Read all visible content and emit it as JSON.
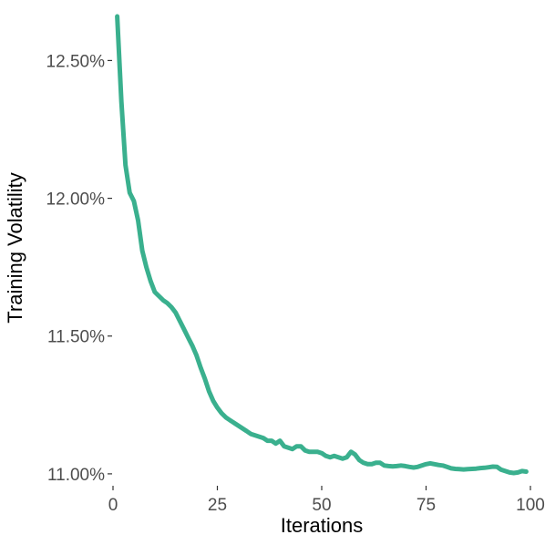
{
  "chart_data": {
    "type": "line",
    "title": "",
    "xlabel": "Iterations",
    "ylabel": "Training Volatility",
    "xlim": [
      0,
      100
    ],
    "ylim": [
      10.96,
      12.68
    ],
    "x_ticks": [
      0,
      25,
      50,
      75,
      100
    ],
    "x_tick_labels": [
      "0",
      "25",
      "50",
      "75",
      "100"
    ],
    "y_ticks": [
      11.0,
      11.5,
      12.0,
      12.5
    ],
    "y_tick_labels": [
      "11.00%",
      "11.50%",
      "12.00%",
      "12.50%"
    ],
    "grid": false,
    "legend": "none",
    "series": [
      {
        "color": "#3ab08e",
        "x": [
          1,
          2,
          3,
          4,
          5,
          6,
          7,
          8,
          9,
          10,
          11,
          12,
          13,
          14,
          15,
          16,
          17,
          18,
          19,
          20,
          21,
          22,
          23,
          24,
          25,
          26,
          27,
          28,
          29,
          30,
          31,
          32,
          33,
          34,
          35,
          36,
          37,
          38,
          39,
          40,
          41,
          42,
          43,
          44,
          45,
          46,
          47,
          48,
          49,
          50,
          51,
          52,
          53,
          54,
          55,
          56,
          57,
          58,
          59,
          60,
          61,
          62,
          63,
          64,
          65,
          66,
          67,
          68,
          69,
          70,
          71,
          72,
          73,
          74,
          75,
          76,
          77,
          78,
          79,
          80,
          81,
          82,
          83,
          84,
          85,
          86,
          87,
          88,
          89,
          90,
          91,
          92,
          93,
          94,
          95,
          96,
          97,
          98,
          99
        ],
        "values": [
          12.66,
          12.35,
          12.12,
          12.02,
          11.99,
          11.92,
          11.81,
          11.75,
          11.7,
          11.66,
          11.645,
          11.63,
          11.62,
          11.605,
          11.585,
          11.555,
          11.525,
          11.495,
          11.465,
          11.43,
          11.385,
          11.345,
          11.3,
          11.265,
          11.24,
          11.22,
          11.205,
          11.195,
          11.185,
          11.175,
          11.165,
          11.155,
          11.145,
          11.14,
          11.135,
          11.13,
          11.12,
          11.12,
          11.11,
          11.12,
          11.1,
          11.095,
          11.09,
          11.1,
          11.1,
          11.085,
          11.08,
          11.08,
          11.08,
          11.075,
          11.065,
          11.06,
          11.065,
          11.06,
          11.055,
          11.06,
          11.08,
          11.07,
          11.05,
          11.04,
          11.035,
          11.035,
          11.04,
          11.04,
          11.03,
          11.028,
          11.027,
          11.028,
          11.03,
          11.028,
          11.025,
          11.023,
          11.025,
          11.03,
          11.035,
          11.038,
          11.035,
          11.032,
          11.03,
          11.025,
          11.02,
          11.018,
          11.017,
          11.016,
          11.017,
          11.018,
          11.019,
          11.021,
          11.022,
          11.024,
          11.026,
          11.025,
          11.015,
          11.01,
          11.005,
          11.003,
          11.005,
          11.01,
          11.008
        ]
      }
    ]
  }
}
